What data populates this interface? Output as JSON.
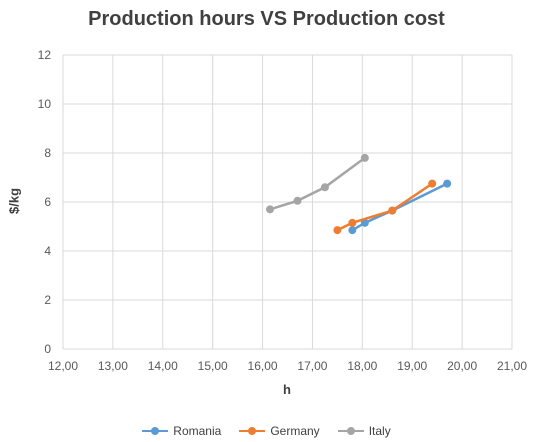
{
  "chart_data": {
    "type": "line",
    "title": "Production hours VS Production cost",
    "xlabel": "h",
    "ylabel": "$/kg",
    "xlim": [
      12,
      21
    ],
    "ylim": [
      0,
      12
    ],
    "x_ticks": [
      "12,00",
      "13,00",
      "14,00",
      "15,00",
      "16,00",
      "17,00",
      "18,00",
      "19,00",
      "20,00",
      "21,00"
    ],
    "y_ticks": [
      "0",
      "2",
      "4",
      "6",
      "8",
      "10",
      "12"
    ],
    "grid": true,
    "legend_position": "bottom",
    "series": [
      {
        "name": "Romania",
        "color": "#5B9BD5",
        "points": [
          [
            17.8,
            4.85
          ],
          [
            18.05,
            5.15
          ],
          [
            18.6,
            5.65
          ],
          [
            19.7,
            6.75
          ]
        ]
      },
      {
        "name": "Germany",
        "color": "#ED7D31",
        "points": [
          [
            17.5,
            4.85
          ],
          [
            17.8,
            5.15
          ],
          [
            18.6,
            5.65
          ],
          [
            19.4,
            6.75
          ]
        ]
      },
      {
        "name": "Italy",
        "color": "#A5A5A5",
        "points": [
          [
            16.15,
            5.7
          ],
          [
            16.7,
            6.05
          ],
          [
            17.25,
            6.6
          ],
          [
            18.05,
            7.8
          ]
        ]
      }
    ]
  }
}
